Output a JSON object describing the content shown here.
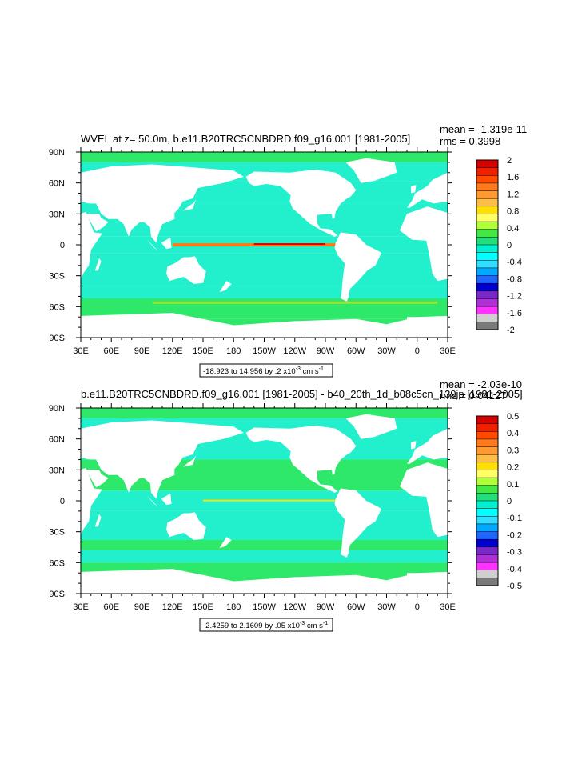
{
  "chart_data": [
    {
      "type": "heatmap",
      "title": "WVEL at z=  50.0m, b.e11.B20TRC5CNBDRD.f09_g16.001 [1981-2005]",
      "stats": {
        "mean": "mean = -1.319e-11",
        "rms": "rms = 0.3998"
      },
      "x_ticks": [
        "30E",
        "60E",
        "90E",
        "120E",
        "150E",
        "180",
        "150W",
        "120W",
        "90W",
        "60W",
        "30W",
        "0",
        "30E"
      ],
      "y_ticks": [
        "90N",
        "60N",
        "30N",
        "0",
        "30S",
        "60S",
        "90S"
      ],
      "xlim": [
        30,
        390
      ],
      "ylim": [
        -90,
        90
      ],
      "colorbar": {
        "labels": [
          "2",
          "1.6",
          "1.2",
          "0.8",
          "0.4",
          "0",
          "-0.4",
          "-0.8",
          "-1.2",
          "-1.6",
          "-2"
        ],
        "levels": [
          2,
          1.6,
          1.2,
          0.8,
          0.4,
          0,
          -0.4,
          -0.8,
          -1.2,
          -1.6,
          -2
        ]
      },
      "range_note": "-18.923 to 14.956 by .2 x10",
      "range_exp": "-3",
      "range_unit": "cm s",
      "range_unit_exp": "-1"
    },
    {
      "type": "heatmap",
      "title": "b.e11.B20TRC5CNBDRD.f09_g16.001 [1981-2005] - b40_20th_1d_b08c5cn_139jp [1981-2005]",
      "stats": {
        "mean": "mean = -2.03e-10",
        "rms": "rms = 0.04127"
      },
      "x_ticks": [
        "30E",
        "60E",
        "90E",
        "120E",
        "150E",
        "180",
        "150W",
        "120W",
        "90W",
        "60W",
        "30W",
        "0",
        "30E"
      ],
      "y_ticks": [
        "90N",
        "60N",
        "30N",
        "0",
        "30S",
        "60S",
        "90S"
      ],
      "xlim": [
        30,
        390
      ],
      "ylim": [
        -90,
        90
      ],
      "colorbar": {
        "labels": [
          "0.5",
          "0.4",
          "0.3",
          "0.2",
          "0.1",
          "0",
          "-0.1",
          "-0.2",
          "-0.3",
          "-0.4",
          "-0.5"
        ],
        "levels": [
          0.5,
          0.4,
          0.3,
          0.2,
          0.1,
          0,
          -0.1,
          -0.2,
          -0.3,
          -0.4,
          -0.5
        ]
      },
      "range_note": "-2.4259 to 2.1609 by .05 x10",
      "range_exp": "-3",
      "range_unit": "cm s",
      "range_unit_exp": "-1"
    }
  ],
  "colors": {
    "palette_top_to_bottom": [
      "#d50000",
      "#f01f00",
      "#ff4a00",
      "#ff7a1a",
      "#ff9a30",
      "#ffbd45",
      "#ffe000",
      "#ffff66",
      "#b0ff3a",
      "#44e844",
      "#1fe07a",
      "#00f0d0",
      "#00ffff",
      "#33ddff",
      "#00a8ff",
      "#1f66ff",
      "#0000d0",
      "#7a28c8",
      "#b030d8",
      "#ff33ff",
      "#cfcfcf",
      "#7a7a7a"
    ],
    "ocean_top": "#22f0cc",
    "ocean_bottom": "#2ee86a",
    "land": "#ffffff"
  }
}
